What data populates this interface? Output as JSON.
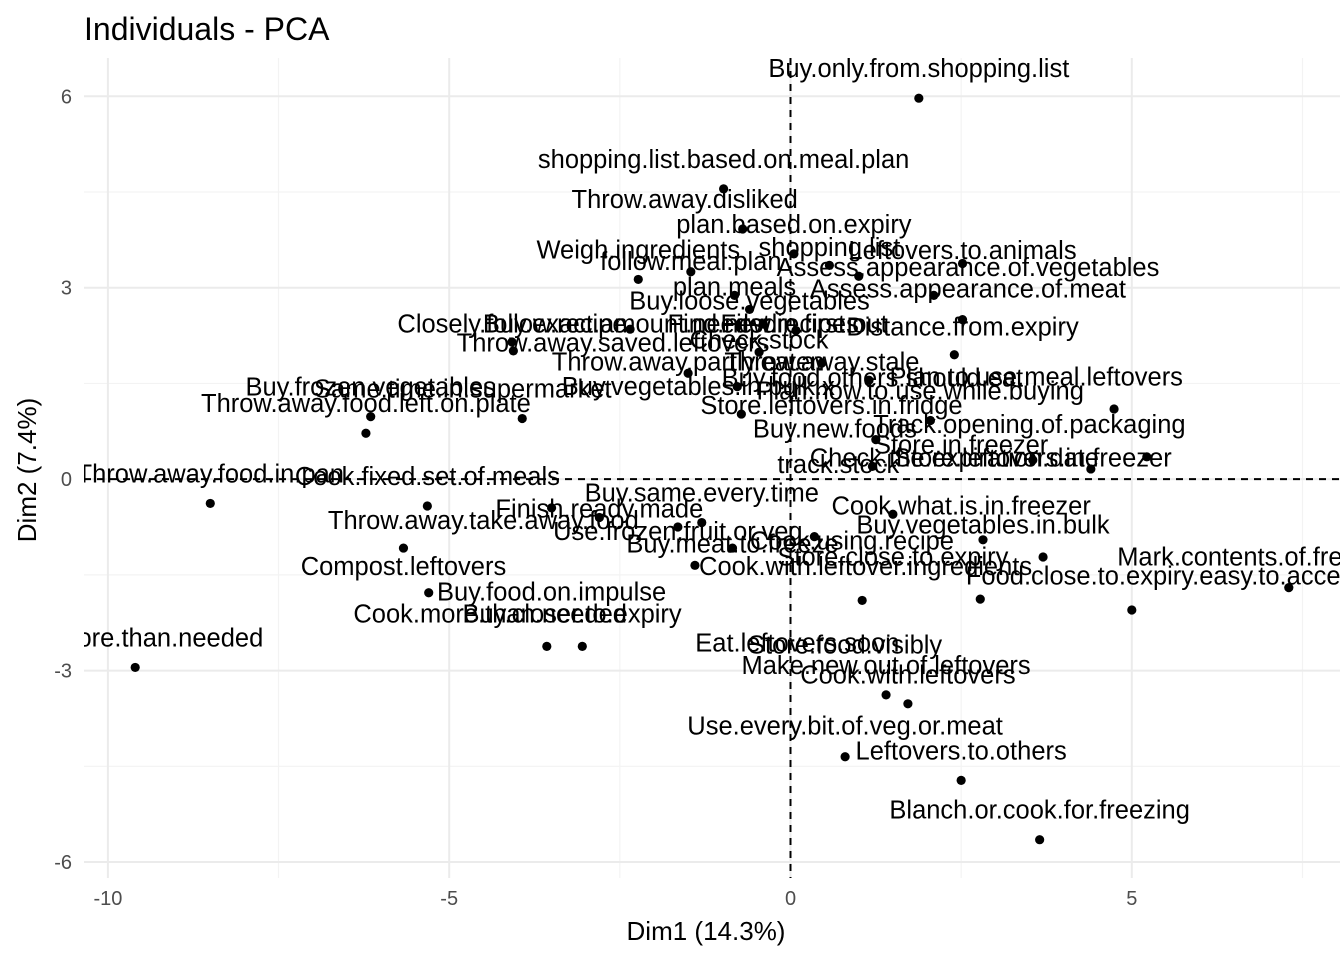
{
  "chart_data": {
    "type": "scatter",
    "title": "Individuals - PCA",
    "xlabel": "Dim1 (14.3%)",
    "ylabel": "Dim2 (7.4%)",
    "xlim": [
      -10.35,
      8.05
    ],
    "ylim": [
      -6.25,
      6.6
    ],
    "x_ticks": [
      -10,
      -5,
      0,
      5
    ],
    "y_ticks": [
      -6,
      -3,
      0,
      3,
      6
    ],
    "x_tick_labels": [
      "-10",
      "-5",
      "0",
      "5"
    ],
    "y_tick_labels": [
      "-6",
      "-3",
      "0",
      "3",
      "6"
    ],
    "x_minor_ticks": [
      -7.5,
      -2.5,
      2.5,
      7.5
    ],
    "y_minor_ticks": [
      -4.5,
      -1.5,
      1.5,
      4.5
    ],
    "grid": true,
    "reference_lines": {
      "x": 0,
      "y": 0,
      "style": "dashed"
    },
    "point_color": "#000000",
    "points": [
      {
        "label": "Buy.only.from.shopping.list",
        "x": 1.88,
        "y": 5.97
      },
      {
        "label": "shopping.list.based.on.meal.plan",
        "x": -0.98,
        "y": 4.55
      },
      {
        "label": "Throw.away.disliked",
        "x": -0.7,
        "y": 3.92
      },
      {
        "label": "plan.based.on.expiry",
        "x": 0.05,
        "y": 3.53
      },
      {
        "label": "Weigh.ingredients",
        "x": -2.23,
        "y": 3.13
      },
      {
        "label": "shopping.list",
        "x": 0.57,
        "y": 3.35
      },
      {
        "label": "Leftovers.to.animals",
        "x": 2.52,
        "y": 3.38
      },
      {
        "label": "follow.meal.plan",
        "x": -1.46,
        "y": 3.25
      },
      {
        "label": "Assess.appearance.of.vegetables",
        "x": 1.0,
        "y": 3.18
      },
      {
        "label": "plan.meals",
        "x": -0.82,
        "y": 2.88
      },
      {
        "label": "Assess.appearance.of.meat",
        "x": 2.1,
        "y": 2.88
      },
      {
        "label": "Buy.loose.vegetables",
        "x": -0.6,
        "y": 2.66
      },
      {
        "label": "Closely.follow.recipe",
        "x": -4.08,
        "y": 2.15
      },
      {
        "label": "Buy.exact.amount.needed",
        "x": -2.35,
        "y": 2.35
      },
      {
        "label": "Find.new.recipes",
        "x": -0.4,
        "y": 2.43
      },
      {
        "label": "First.in.first.out",
        "x": 0.08,
        "y": 2.33
      },
      {
        "label": "Distance.from.expiry",
        "x": 2.52,
        "y": 2.5
      },
      {
        "label": "Throw.away.saved.leftovers",
        "x": -4.06,
        "y": 2.01
      },
      {
        "label": "Check.stock",
        "x": -0.46,
        "y": 1.99
      },
      {
        "label": "Throw.away.partly.eaten",
        "x": -1.5,
        "y": 1.66
      },
      {
        "label": "Throw.away.stale",
        "x": 0.46,
        "y": 1.82
      },
      {
        "label": "Plan.to.use.meal.leftovers",
        "x": 2.4,
        "y": 1.95
      },
      {
        "label": "Buy.frozen.vegetables",
        "x": -6.15,
        "y": 0.98
      },
      {
        "label": "Same.time.in.supermarket",
        "x": -3.93,
        "y": 0.95
      },
      {
        "label": "Buy.vegetables.in.bulk.x",
        "x": -0.78,
        "y": 1.45
      },
      {
        "label": "Buy.food.others.should.eat",
        "x": 1.15,
        "y": 1.55
      },
      {
        "label": "Throw.away.food.left.on.plate",
        "x": -6.22,
        "y": 0.72
      },
      {
        "label": "Plan.how.to.use.while.buying",
        "x": 4.74,
        "y": 1.1
      },
      {
        "label": "Store.leftovers.in.fridge",
        "x": -0.72,
        "y": 1.02
      },
      {
        "label": "Buy.new.foods",
        "x": 2.05,
        "y": 0.92
      },
      {
        "label": "Track.opening.of.packaging",
        "x": 1.25,
        "y": 0.62
      },
      {
        "label": "Store.in.freezer",
        "x": 3.55,
        "y": 0.3
      },
      {
        "label": "Check.the.expiration.date",
        "x": 1.2,
        "y": 0.2
      },
      {
        "label": "Store.leftovers.in.freezer",
        "x": 4.4,
        "y": 0.16
      },
      {
        "label": "track.stock",
        "x": 5.22,
        "y": 0.35
      },
      {
        "label": "Throw.away.food.in.pan",
        "x": -8.5,
        "y": -0.38
      },
      {
        "label": "Cook.fixed.set.of.meals",
        "x": -5.32,
        "y": -0.42
      },
      {
        "label": "Buy.same.every.time",
        "x": -1.3,
        "y": -0.68
      },
      {
        "label": "Throw.away.take.away.food",
        "x": -3.5,
        "y": -0.45
      },
      {
        "label": "Finish.ready.made",
        "x": -2.8,
        "y": -0.6
      },
      {
        "label": "Use.frozen.fruit.or.veg",
        "x": -1.65,
        "y": -0.75
      },
      {
        "label": "Buy.vegetables.in.bulk",
        "x": 2.82,
        "y": -0.95
      },
      {
        "label": "Cook.what.is.in.freezer",
        "x": 1.5,
        "y": -0.55
      },
      {
        "label": "Cook.using.recipe",
        "x": 0.35,
        "y": -0.9
      },
      {
        "label": "Buy.meat.to.freeze",
        "x": -0.85,
        "y": -1.08
      },
      {
        "label": "Compost.leftovers",
        "x": -5.67,
        "y": -1.08
      },
      {
        "label": "Mark.contents.of.freezer",
        "x": 3.7,
        "y": -1.22
      },
      {
        "label": "Cook.with.leftover.ingredients",
        "x": -1.4,
        "y": -1.35
      },
      {
        "label": "Food.close.to.expiry.easy.to.access",
        "x": 7.3,
        "y": -1.7
      },
      {
        "label": "Store.close.to.expiry",
        "x": 2.78,
        "y": -1.88
      },
      {
        "label": "Buy.food.on.impulse",
        "x": -5.3,
        "y": -1.78
      },
      {
        "label": "Cook.more.than.needed",
        "x": -3.57,
        "y": -2.62
      },
      {
        "label": "Buy.closer.to.expiry",
        "x": -3.05,
        "y": -2.62
      },
      {
        "label": "Eat.leftovers.soon",
        "x": 1.05,
        "y": -1.9
      },
      {
        "label": "Buy.more.than.needed",
        "x": -9.6,
        "y": -2.95
      },
      {
        "label": "Store.food.visibly",
        "x": 5.0,
        "y": -2.05
      },
      {
        "label": "Make.new.out.of.leftovers",
        "x": 1.4,
        "y": -3.38
      },
      {
        "label": "Cook.with.leftovers",
        "x": 1.72,
        "y": -3.52
      },
      {
        "label": "Use.every.bit.of.veg.or.meat",
        "x": 0.8,
        "y": -4.35
      },
      {
        "label": "Leftovers.to.others",
        "x": 2.5,
        "y": -4.72
      },
      {
        "label": "Blanch.or.cook.for.freezing",
        "x": 3.65,
        "y": -5.65
      }
    ],
    "labels": [
      {
        "text": "Buy.only.from.shopping.list",
        "x": 1.88,
        "y": 6.3
      },
      {
        "text": "shopping.list.based.on.meal.plan",
        "x": -0.98,
        "y": 4.88
      },
      {
        "text": "Throw.away.disliked",
        "x": -1.55,
        "y": 4.25
      },
      {
        "text": "plan.based.on.expiry",
        "x": 0.05,
        "y": 3.86
      },
      {
        "text": "Weigh.ingredients",
        "x": -2.23,
        "y": 3.46
      },
      {
        "text": "shopping.list",
        "x": 0.57,
        "y": 3.5
      },
      {
        "text": "Leftovers.to.animals",
        "x": 2.52,
        "y": 3.45
      },
      {
        "text": "follow.meal.plan",
        "x": -1.46,
        "y": 3.28
      },
      {
        "text": "Assess.appearance.of.vegetables",
        "x": 2.6,
        "y": 3.18
      },
      {
        "text": "plan.meals",
        "x": -0.82,
        "y": 2.88
      },
      {
        "text": "Assess.appearance.of.meat",
        "x": 2.6,
        "y": 2.85
      },
      {
        "text": "Buy.loose.vegetables",
        "x": -0.6,
        "y": 2.66
      },
      {
        "text": "Closely.follow.recipe",
        "x": -4.08,
        "y": 2.3
      },
      {
        "text": "Buy.exact.amount.needed",
        "x": -2.35,
        "y": 2.3
      },
      {
        "text": "Find.new.recipes",
        "x": -0.4,
        "y": 2.3
      },
      {
        "text": "First.in.first.out",
        "x": 0.2,
        "y": 2.3
      },
      {
        "text": "Distance.from.expiry",
        "x": 2.52,
        "y": 2.25
      },
      {
        "text": "Throw.away.saved.leftovers",
        "x": -2.6,
        "y": 2.0
      },
      {
        "text": "Check.stock",
        "x": -0.46,
        "y": 2.05
      },
      {
        "text": "Throw.away.partly.eaten",
        "x": -1.5,
        "y": 1.7
      },
      {
        "text": "Throw.away.stale",
        "x": 0.46,
        "y": 1.7
      },
      {
        "text": "Plan.to.use.meal.leftovers",
        "x": 3.6,
        "y": 1.47
      },
      {
        "text": "Buy.frozen.vegetables",
        "x": -6.15,
        "y": 1.31
      },
      {
        "text": "Same.time.in.supermarket",
        "x": -4.8,
        "y": 1.28
      },
      {
        "text": "Buy.vegetables.in.bulk.x",
        "x": -1.35,
        "y": 1.32
      },
      {
        "text": "Buy.food.others.should.eat",
        "x": 1.2,
        "y": 1.45
      },
      {
        "text": "Throw.away.food.left.on.plate",
        "x": -6.22,
        "y": 1.05
      },
      {
        "text": "Plan.how.to.use.while.buying",
        "x": 1.9,
        "y": 1.25
      },
      {
        "text": "Store.leftovers.in.fridge",
        "x": 0.6,
        "y": 1.02
      },
      {
        "text": "Buy.new.foods",
        "x": 0.65,
        "y": 0.65
      },
      {
        "text": "Track.opening.of.packaging",
        "x": 3.5,
        "y": 0.72
      },
      {
        "text": "Store.in.freezer",
        "x": 2.5,
        "y": 0.4
      },
      {
        "text": "Check.the.expiration.date",
        "x": 2.4,
        "y": 0.2
      },
      {
        "text": "Store.leftovers.in.freezer",
        "x": 3.55,
        "y": 0.2
      },
      {
        "text": "track.stock",
        "x": 0.7,
        "y": 0.1
      },
      {
        "text": "Throw.away.food.in.pan",
        "x": -8.5,
        "y": -0.05
      },
      {
        "text": "Cook.fixed.set.of.meals",
        "x": -5.32,
        "y": -0.09
      },
      {
        "text": "Buy.same.every.time",
        "x": -1.3,
        "y": -0.35
      },
      {
        "text": "Throw.away.take.away.food",
        "x": -4.5,
        "y": -0.78
      },
      {
        "text": "Finish.ready.made",
        "x": -2.8,
        "y": -0.6
      },
      {
        "text": "Use.frozen.fruit.or.veg",
        "x": -1.65,
        "y": -0.95
      },
      {
        "text": "Buy.vegetables.in.bulk",
        "x": 2.82,
        "y": -0.85
      },
      {
        "text": "Cook.what.is.in.freezer",
        "x": 2.5,
        "y": -0.55
      },
      {
        "text": "Cook.using.recipe",
        "x": 0.9,
        "y": -1.1
      },
      {
        "text": "Buy.meat.to.freeze",
        "x": -0.85,
        "y": -1.15
      },
      {
        "text": "Compost.leftovers",
        "x": -5.67,
        "y": -1.5
      },
      {
        "text": "Mark.contents.of.freezer",
        "x": 6.8,
        "y": -1.35
      },
      {
        "text": "Cook.with.leftover.ingredients",
        "x": 1.1,
        "y": -1.5
      },
      {
        "text": "Food.close.to.expiry.easy.to.access",
        "x": 5.5,
        "y": -1.65
      },
      {
        "text": "Store.close.to.expiry",
        "x": 1.5,
        "y": -1.35
      },
      {
        "text": "Buy.food.on.impulse",
        "x": -3.5,
        "y": -1.9
      },
      {
        "text": "Cook.more.than.needed",
        "x": -4.4,
        "y": -2.25
      },
      {
        "text": "Buy.closer.to.expiry",
        "x": -3.2,
        "y": -2.25
      },
      {
        "text": "Eat.leftovers.soon",
        "x": 0.1,
        "y": -2.7
      },
      {
        "text": "Buy.more.than.needed",
        "x": -9.6,
        "y": -2.62
      },
      {
        "text": "Store.food.visibly",
        "x": 0.8,
        "y": -2.73
      },
      {
        "text": "Make.new.out.of.leftovers",
        "x": 1.4,
        "y": -3.05
      },
      {
        "text": "Cook.with.leftovers",
        "x": 1.72,
        "y": -3.2
      },
      {
        "text": "Use.every.bit.of.veg.or.meat",
        "x": 0.8,
        "y": -4.0
      },
      {
        "text": "Leftovers.to.others",
        "x": 2.5,
        "y": -4.39
      },
      {
        "text": "Blanch.or.cook.for.freezing",
        "x": 3.65,
        "y": -5.32
      }
    ]
  }
}
